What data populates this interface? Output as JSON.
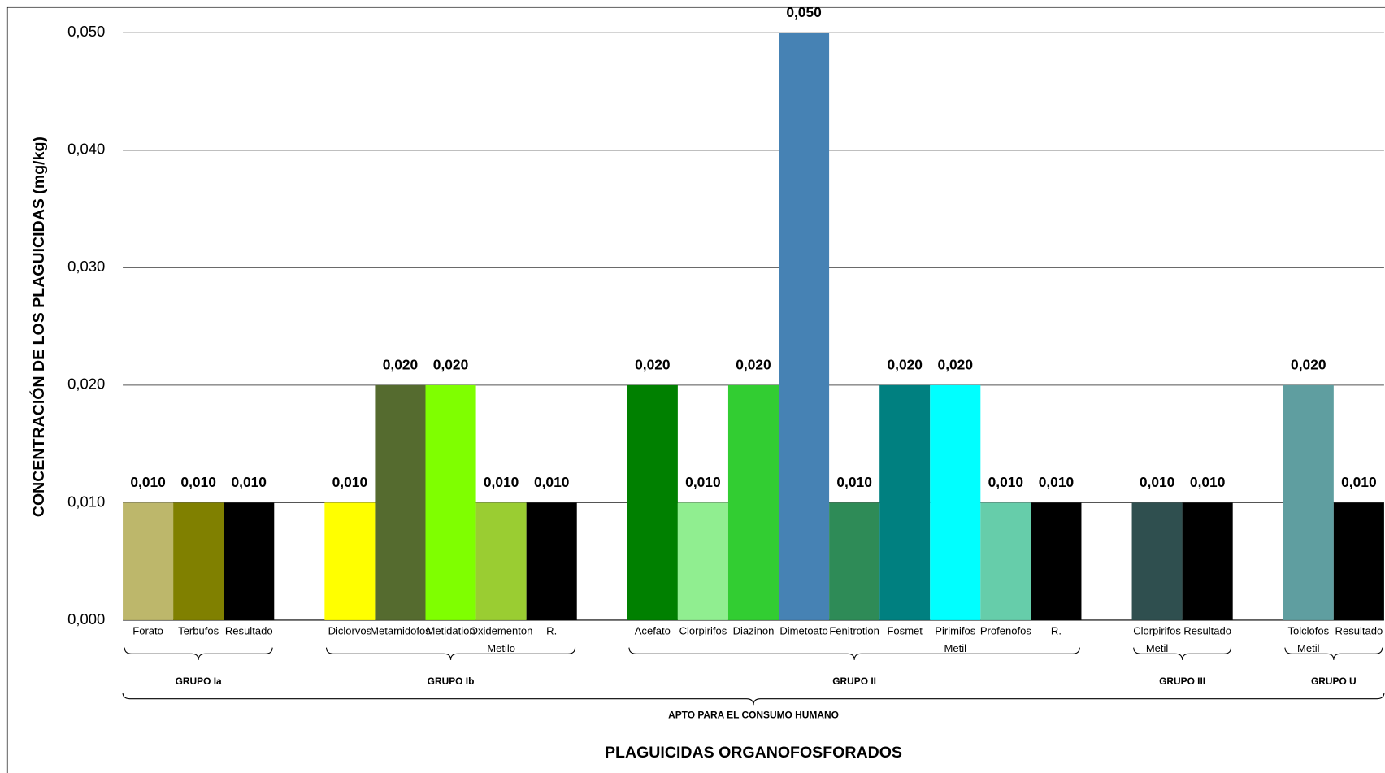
{
  "chart_data": {
    "type": "bar",
    "ylabel": "CONCENTRACIÓN DE LOS PLAGUICIDAS (mg/kg)",
    "xlabel": "PLAGUICIDAS ORGANOFOSFORADOS",
    "supergroup": "APTO PARA EL CONSUMO HUMANO",
    "ylim": [
      0,
      0.05
    ],
    "yticks": [
      {
        "value": 0,
        "label": "0,000"
      },
      {
        "value": 0.01,
        "label": "0,010"
      },
      {
        "value": 0.02,
        "label": "0,020"
      },
      {
        "value": 0.03,
        "label": "0,030"
      },
      {
        "value": 0.04,
        "label": "0,040"
      },
      {
        "value": 0.05,
        "label": "0,050"
      }
    ],
    "grid": true,
    "groups": [
      {
        "name": "GRUPO Ia",
        "categories": [
          "Forato",
          "Terbufos",
          "Resultado"
        ],
        "values": [
          0.01,
          0.01,
          0.01
        ],
        "value_labels": [
          "0,010",
          "0,010",
          "0,010"
        ],
        "colors": [
          "#BDB76B",
          "#808000",
          "#000000"
        ]
      },
      {
        "name": "GRUPO Ib",
        "categories": [
          "Diclorvos",
          "Metamidofos",
          "Metidation",
          [
            "Oxidementon",
            "Metilo"
          ],
          "R."
        ],
        "values": [
          0.01,
          0.02,
          0.02,
          0.01,
          0.01
        ],
        "value_labels": [
          "0,010",
          "0,020",
          "0,020",
          "0,010",
          "0,010"
        ],
        "colors": [
          "#FFFF00",
          "#556B2F",
          "#7FFF00",
          "#9ACD32",
          "#000000"
        ]
      },
      {
        "name": "GRUPO II",
        "categories": [
          "Acefato",
          "Clorpirifos",
          "Diazinon",
          "Dimetoato",
          "Fenitrotion",
          "Fosmet",
          [
            "Pirimifos",
            "Metil"
          ],
          "Profenofos",
          "R."
        ],
        "values": [
          0.02,
          0.01,
          0.02,
          0.05,
          0.01,
          0.02,
          0.02,
          0.01,
          0.01
        ],
        "value_labels": [
          "0,020",
          "0,010",
          "0,020",
          "0,050",
          "0,010",
          "0,020",
          "0,020",
          "0,010",
          "0,010"
        ],
        "colors": [
          "#008000",
          "#90EE90",
          "#32CD32",
          "#4682B4",
          "#2E8B57",
          "#008080",
          "#00FFFF",
          "#66CDAA",
          "#000000"
        ]
      },
      {
        "name": "GRUPO III",
        "categories": [
          [
            "Clorpirifos",
            "Metil"
          ],
          "Resultado"
        ],
        "values": [
          0.01,
          0.01
        ],
        "value_labels": [
          "0,010",
          "0,010"
        ],
        "colors": [
          "#2F4F4F",
          "#000000"
        ]
      },
      {
        "name": "GRUPO U",
        "categories": [
          [
            "Tolclofos",
            "Metil"
          ],
          "Resultado"
        ],
        "values": [
          0.02,
          0.01
        ],
        "value_labels": [
          "0,020",
          "0,010"
        ],
        "colors": [
          "#5F9EA0",
          "#000000"
        ]
      }
    ]
  }
}
